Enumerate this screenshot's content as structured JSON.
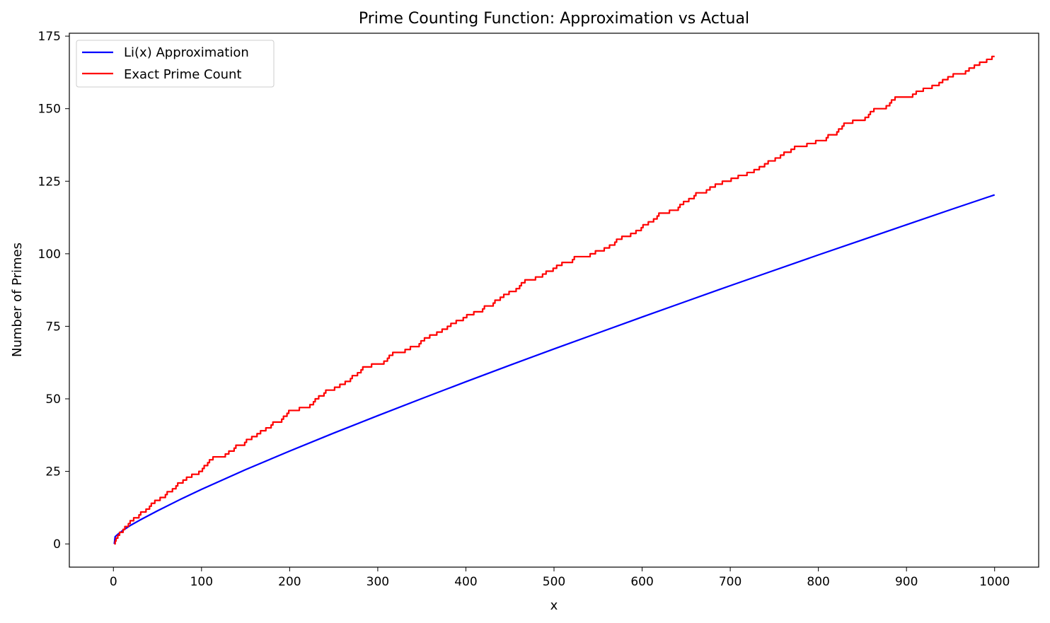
{
  "chart_data": {
    "type": "line",
    "title": "Prime Counting Function: Approximation vs Actual",
    "xlabel": "x",
    "ylabel": "Number of Primes",
    "xlim": [
      -50,
      1050
    ],
    "ylim": [
      -8,
      176
    ],
    "x_ticks": [
      0,
      100,
      200,
      300,
      400,
      500,
      600,
      700,
      800,
      900,
      1000
    ],
    "y_ticks": [
      0,
      25,
      50,
      75,
      100,
      125,
      150,
      175
    ],
    "grid": false,
    "legend_position": "upper-left",
    "series": [
      {
        "name": "Li(x) Approximation",
        "color": "#0000ff",
        "x": [
          1,
          2,
          5,
          10,
          20,
          30,
          50,
          75,
          100,
          150,
          200,
          250,
          300,
          350,
          400,
          450,
          500,
          550,
          600,
          650,
          700,
          750,
          800,
          850,
          900,
          950,
          1000
        ],
        "y": [
          0,
          2.5,
          3.3,
          4.5,
          6.5,
          8.2,
          11.4,
          15.2,
          18.8,
          25.6,
          32.0,
          38.2,
          44.2,
          50.1,
          55.9,
          61.6,
          67.2,
          72.7,
          78.2,
          83.6,
          89.0,
          94.3,
          99.6,
          104.8,
          110.0,
          115.2,
          120.3
        ]
      },
      {
        "name": "Exact Prime Count",
        "color": "#ff0000",
        "x": [
          1,
          2,
          3,
          5,
          7,
          11,
          13,
          17,
          19,
          23,
          29,
          31,
          37,
          41,
          43,
          47,
          53,
          59,
          61,
          67,
          71,
          73,
          79,
          83,
          89,
          97,
          101,
          103,
          107,
          109,
          113,
          127,
          131,
          137,
          139,
          149,
          151,
          157,
          163,
          167,
          173,
          179,
          181,
          191,
          193,
          197,
          199,
          211,
          223,
          227,
          229,
          233,
          239,
          241,
          251,
          257,
          263,
          269,
          271,
          277,
          281,
          283,
          293,
          307,
          311,
          313,
          317,
          331,
          337,
          347,
          349,
          353,
          359,
          367,
          373,
          379,
          383,
          389,
          397,
          401,
          409,
          419,
          421,
          431,
          433,
          439,
          443,
          449,
          457,
          461,
          463,
          467,
          479,
          487,
          491,
          499,
          503,
          509,
          521,
          523,
          541,
          547,
          557,
          563,
          569,
          571,
          577,
          587,
          593,
          599,
          601,
          607,
          613,
          617,
          619,
          631,
          641,
          643,
          647,
          653,
          659,
          661,
          673,
          677,
          683,
          691,
          701,
          709,
          719,
          727,
          733,
          739,
          743,
          751,
          757,
          761,
          769,
          773,
          787,
          797,
          809,
          811,
          821,
          823,
          827,
          829,
          839,
          853,
          857,
          859,
          863,
          877,
          881,
          883,
          887,
          907,
          911,
          919,
          929,
          937,
          941,
          947,
          953,
          967,
          971,
          977,
          983,
          991,
          997,
          1000
        ],
        "y": [
          0,
          1,
          2,
          3,
          4,
          5,
          6,
          7,
          8,
          9,
          10,
          11,
          12,
          13,
          14,
          15,
          16,
          17,
          18,
          19,
          20,
          21,
          22,
          23,
          24,
          25,
          26,
          27,
          28,
          29,
          30,
          31,
          32,
          33,
          34,
          35,
          36,
          37,
          38,
          39,
          40,
          41,
          42,
          43,
          44,
          45,
          46,
          47,
          48,
          49,
          50,
          51,
          52,
          53,
          54,
          55,
          56,
          57,
          58,
          59,
          60,
          61,
          62,
          63,
          64,
          65,
          66,
          67,
          68,
          69,
          70,
          71,
          72,
          73,
          74,
          75,
          76,
          77,
          78,
          79,
          80,
          81,
          82,
          83,
          84,
          85,
          86,
          87,
          88,
          89,
          90,
          91,
          92,
          93,
          94,
          95,
          96,
          97,
          98,
          99,
          100,
          101,
          102,
          103,
          104,
          105,
          106,
          107,
          108,
          109,
          110,
          111,
          112,
          113,
          114,
          115,
          116,
          117,
          118,
          119,
          120,
          121,
          122,
          123,
          124,
          125,
          126,
          127,
          128,
          129,
          130,
          131,
          132,
          133,
          134,
          135,
          136,
          137,
          138,
          139,
          140,
          141,
          142,
          143,
          144,
          145,
          146,
          147,
          148,
          149,
          150,
          151,
          152,
          153,
          154,
          155,
          156,
          157,
          158,
          159,
          160,
          161,
          162,
          163,
          164,
          165,
          166,
          167,
          168,
          168
        ]
      }
    ]
  }
}
